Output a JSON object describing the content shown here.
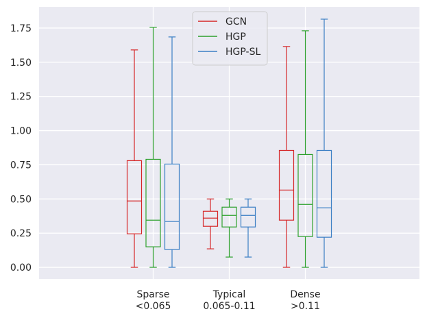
{
  "chart_data": {
    "type": "box",
    "title": "",
    "xlabel": "",
    "ylabel": "",
    "ylim": [
      -0.085,
      1.905
    ],
    "yticks": [
      0.0,
      0.25,
      0.5,
      0.75,
      1.0,
      1.25,
      1.5,
      1.75
    ],
    "ytick_labels": [
      "0.00",
      "0.25",
      "0.50",
      "0.75",
      "1.00",
      "1.25",
      "1.50",
      "1.75"
    ],
    "grid": true,
    "legend_position": "top-center",
    "categories": [
      {
        "line1": "Sparse",
        "line2": "<0.065"
      },
      {
        "line1": "Typical",
        "line2": "0.065-0.11"
      },
      {
        "line1": "Dense",
        "line2": ">0.11"
      }
    ],
    "series": [
      {
        "name": "GCN",
        "color": "#d62728",
        "boxes": [
          {
            "min": 0.0,
            "q1": 0.245,
            "median": 0.485,
            "q3": 0.78,
            "max": 1.59
          },
          {
            "min": 0.135,
            "q1": 0.3,
            "median": 0.36,
            "q3": 0.41,
            "max": 0.5
          },
          {
            "min": 0.0,
            "q1": 0.345,
            "median": 0.565,
            "q3": 0.855,
            "max": 1.615
          }
        ]
      },
      {
        "name": "HGP",
        "color": "#2ca02c",
        "boxes": [
          {
            "min": 0.0,
            "q1": 0.15,
            "median": 0.345,
            "q3": 0.79,
            "max": 1.755
          },
          {
            "min": 0.075,
            "q1": 0.295,
            "median": 0.38,
            "q3": 0.44,
            "max": 0.5
          },
          {
            "min": 0.0,
            "q1": 0.225,
            "median": 0.46,
            "q3": 0.825,
            "max": 1.73
          }
        ]
      },
      {
        "name": "HGP-SL",
        "color": "#3a7ec4",
        "boxes": [
          {
            "min": 0.0,
            "q1": 0.13,
            "median": 0.335,
            "q3": 0.755,
            "max": 1.685
          },
          {
            "min": 0.075,
            "q1": 0.295,
            "median": 0.38,
            "q3": 0.44,
            "max": 0.5
          },
          {
            "min": 0.0,
            "q1": 0.22,
            "median": 0.435,
            "q3": 0.855,
            "max": 1.815
          }
        ]
      }
    ]
  }
}
